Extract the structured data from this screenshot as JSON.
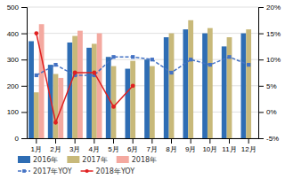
{
  "chart_data": {
    "type": "bar",
    "categories": [
      "1月",
      "2月",
      "3月",
      "4月",
      "5月",
      "6月",
      "7月",
      "8月",
      "9月",
      "10月",
      "11月",
      "12月"
    ],
    "series": [
      {
        "name": "2016年",
        "color": "#2E6DB4",
        "values": [
          370,
          280,
          365,
          345,
          310,
          265,
          300,
          385,
          415,
          400,
          350,
          400
        ]
      },
      {
        "name": "2017年",
        "color": "#C8B97A",
        "values": [
          175,
          245,
          390,
          360,
          275,
          295,
          275,
          400,
          450,
          420,
          385,
          415
        ]
      },
      {
        "name": "2018年",
        "color": "#F4A9A0",
        "values": [
          435,
          230,
          410,
          400,
          null,
          null,
          null,
          null,
          null,
          null,
          null,
          null
        ]
      },
      {
        "name": "2017年YOY",
        "type": "line",
        "axis": "y2",
        "color": "#4472C4",
        "line_style": "dashed",
        "marker": "square",
        "values": [
          7.0,
          9.0,
          7.0,
          7.0,
          10.5,
          10.5,
          10.0,
          7.5,
          10.0,
          9.0,
          10.5,
          9.0
        ]
      },
      {
        "name": "2018年YOY",
        "type": "line",
        "axis": "y2",
        "color": "#E02020",
        "line_style": "solid",
        "marker": "circle",
        "values": [
          15.0,
          -2.0,
          7.5,
          7.5,
          1.0,
          5.0,
          null,
          null,
          null,
          null,
          null,
          null
        ]
      }
    ],
    "ylim": [
      0,
      500
    ],
    "yticks": [
      0,
      100,
      200,
      300,
      400,
      500
    ],
    "y2lim": [
      -5,
      20
    ],
    "y2ticks": [
      {
        "value": -5,
        "label": "-5%"
      },
      {
        "value": 0,
        "label": "0%"
      },
      {
        "value": 5,
        "label": "5%"
      },
      {
        "value": 10,
        "label": "10%"
      },
      {
        "value": 15,
        "label": "15%"
      },
      {
        "value": 20,
        "label": "20%"
      }
    ],
    "grid": true,
    "legend": "bottom"
  }
}
